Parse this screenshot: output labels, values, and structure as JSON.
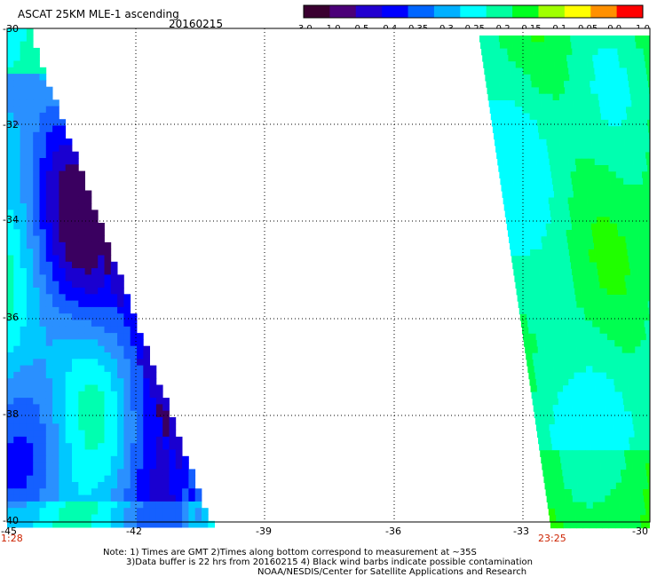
{
  "header": {
    "product": "ASCAT 25KM MLE-1 ascending",
    "date": "20160215"
  },
  "colorbar": {
    "labels": [
      "-3.0",
      "-1.0",
      "-0.5",
      "-0.4",
      "-0.35",
      "-0.3",
      "-0.25",
      "-0.2",
      "-0.15",
      "-0.1",
      "-0.05",
      "0.0",
      "1.0"
    ],
    "colors": [
      "#3a0030",
      "#4b0078",
      "#2200d0",
      "#0000ff",
      "#0066ff",
      "#00b0ff",
      "#00ffff",
      "#00ffa0",
      "#00ff20",
      "#a0ff00",
      "#ffff00",
      "#ff9000",
      "#ff0000"
    ]
  },
  "axes": {
    "lat_labels": [
      "-30",
      "-32",
      "-34",
      "-36",
      "-38",
      "-40"
    ],
    "lon_labels": [
      "-45",
      "-42",
      "-39",
      "-36",
      "-33",
      "-30"
    ],
    "times": [
      "1:28",
      "23:25"
    ]
  },
  "notes": [
    "Note: 1) Times are GMT 2)Times along bottom correspond to measurement at ~35S",
    "3)Data buffer is 22 hrs from 20160215 4) Black wind barbs indicate possible contamination",
    "NOAA/NESDIS/Center for Satellite Applications and Research"
  ]
}
